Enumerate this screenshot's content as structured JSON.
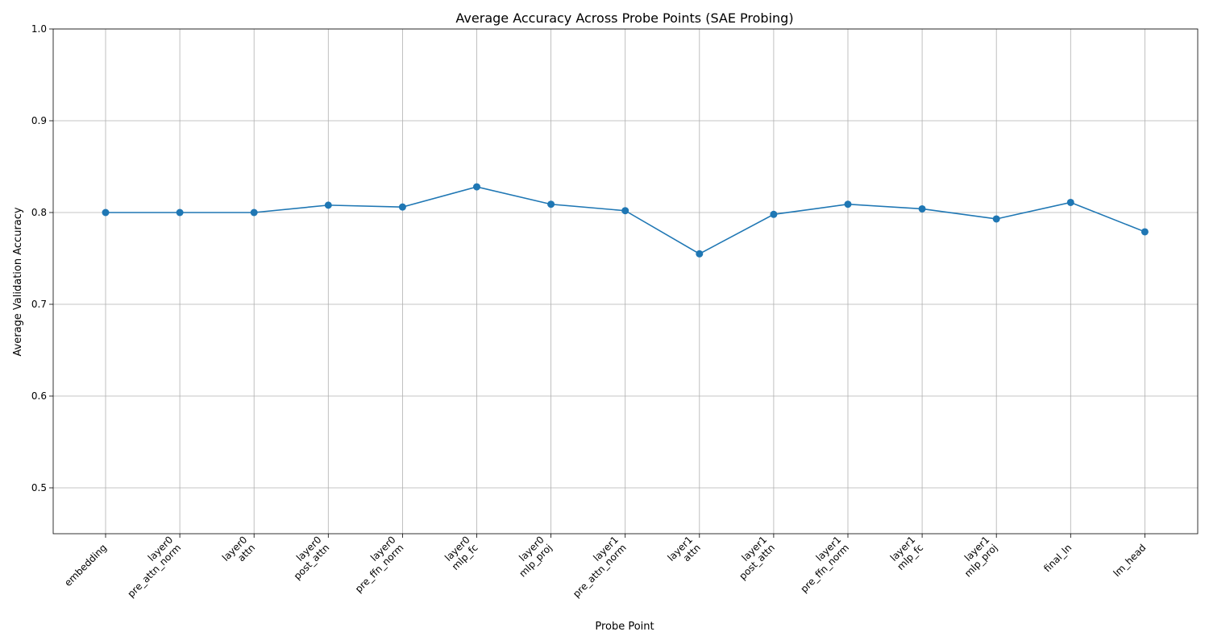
{
  "chart_data": {
    "type": "line",
    "title": "Average Accuracy Across Probe Points (SAE Probing)",
    "xlabel": "Probe Point",
    "ylabel": "Average Validation Accuracy",
    "ylim": [
      0.45,
      1.0
    ],
    "yticks": [
      "0.5",
      "0.6",
      "0.7",
      "0.8",
      "0.9",
      "1.0"
    ],
    "ytick_values": [
      0.5,
      0.6,
      0.7,
      0.8,
      0.9,
      1.0
    ],
    "grid": true,
    "categories": [
      [
        "embedding"
      ],
      [
        "layer0",
        "pre_attn_norm"
      ],
      [
        "layer0",
        "attn"
      ],
      [
        "layer0",
        "post_attn"
      ],
      [
        "layer0",
        "pre_ffn_norm"
      ],
      [
        "layer0",
        "mlp_fc"
      ],
      [
        "layer0",
        "mlp_proj"
      ],
      [
        "layer1",
        "pre_attn_norm"
      ],
      [
        "layer1",
        "attn"
      ],
      [
        "layer1",
        "post_attn"
      ],
      [
        "layer1",
        "pre_ffn_norm"
      ],
      [
        "layer1",
        "mlp_fc"
      ],
      [
        "layer1",
        "mlp_proj"
      ],
      [
        "final_ln"
      ],
      [
        "lm_head"
      ]
    ],
    "values": [
      0.8,
      0.8,
      0.8,
      0.808,
      0.806,
      0.828,
      0.809,
      0.802,
      0.755,
      0.798,
      0.809,
      0.804,
      0.793,
      0.811,
      0.779
    ],
    "color": "#1f77b4"
  }
}
